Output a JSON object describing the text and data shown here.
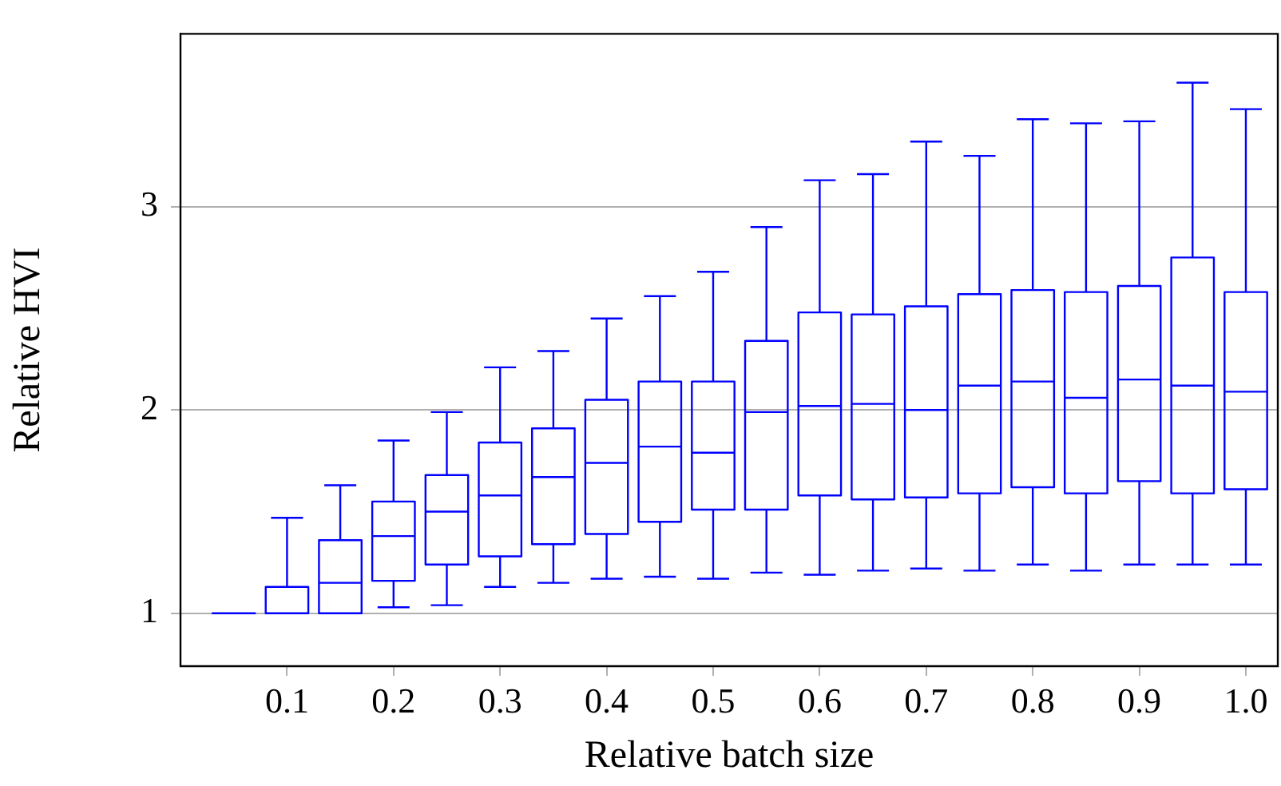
{
  "chart_data": {
    "type": "box",
    "xlabel": "Relative batch size",
    "ylabel": "Relative HVI",
    "x": [
      0.05,
      0.1,
      0.15,
      0.2,
      0.25,
      0.3,
      0.35,
      0.4,
      0.45,
      0.5,
      0.55,
      0.6,
      0.65,
      0.7,
      0.75,
      0.8,
      0.85,
      0.9,
      0.95,
      1.0
    ],
    "xlim": [
      0,
      1.03
    ],
    "xticks": [
      {
        "value": 0.1,
        "label": "0.1"
      },
      {
        "value": 0.2,
        "label": "0.2"
      },
      {
        "value": 0.3,
        "label": "0.3"
      },
      {
        "value": 0.4,
        "label": "0.4"
      },
      {
        "value": 0.5,
        "label": "0.5"
      },
      {
        "value": 0.6,
        "label": "0.6"
      },
      {
        "value": 0.7,
        "label": "0.7"
      },
      {
        "value": 0.8,
        "label": "0.8"
      },
      {
        "value": 0.9,
        "label": "0.9"
      },
      {
        "value": 1.0,
        "label": "1.0"
      }
    ],
    "ylim": [
      0.74,
      3.85
    ],
    "yticks": [
      1,
      2,
      3
    ],
    "grid": "y",
    "color": "#0000ff",
    "boxes": [
      {
        "low": 1,
        "q1": 1,
        "median": 1,
        "q3": 1,
        "high": 1
      },
      {
        "low": 1,
        "q1": 1,
        "median": 1,
        "q3": 1.13,
        "high": 1.47
      },
      {
        "low": 1,
        "q1": 1,
        "median": 1.15,
        "q3": 1.36,
        "high": 1.63
      },
      {
        "low": 1.03,
        "q1": 1.16,
        "median": 1.38,
        "q3": 1.55,
        "high": 1.85
      },
      {
        "low": 1.04,
        "q1": 1.24,
        "median": 1.5,
        "q3": 1.68,
        "high": 1.99
      },
      {
        "low": 1.13,
        "q1": 1.28,
        "median": 1.58,
        "q3": 1.84,
        "high": 2.21
      },
      {
        "low": 1.15,
        "q1": 1.34,
        "median": 1.67,
        "q3": 1.91,
        "high": 2.29
      },
      {
        "low": 1.17,
        "q1": 1.39,
        "median": 1.74,
        "q3": 2.05,
        "high": 2.45
      },
      {
        "low": 1.18,
        "q1": 1.45,
        "median": 1.82,
        "q3": 2.14,
        "high": 2.56
      },
      {
        "low": 1.17,
        "q1": 1.51,
        "median": 1.79,
        "q3": 2.14,
        "high": 2.68
      },
      {
        "low": 1.2,
        "q1": 1.51,
        "median": 1.99,
        "q3": 2.34,
        "high": 2.9
      },
      {
        "low": 1.19,
        "q1": 1.58,
        "median": 2.02,
        "q3": 2.48,
        "high": 3.13
      },
      {
        "low": 1.21,
        "q1": 1.56,
        "median": 2.03,
        "q3": 2.47,
        "high": 3.16
      },
      {
        "low": 1.22,
        "q1": 1.57,
        "median": 2,
        "q3": 2.51,
        "high": 3.32
      },
      {
        "low": 1.21,
        "q1": 1.59,
        "median": 2.12,
        "q3": 2.57,
        "high": 3.25
      },
      {
        "low": 1.24,
        "q1": 1.62,
        "median": 2.14,
        "q3": 2.59,
        "high": 3.43
      },
      {
        "low": 1.21,
        "q1": 1.59,
        "median": 2.06,
        "q3": 2.58,
        "high": 3.41
      },
      {
        "low": 1.24,
        "q1": 1.65,
        "median": 2.15,
        "q3": 2.61,
        "high": 3.42
      },
      {
        "low": 1.24,
        "q1": 1.59,
        "median": 2.12,
        "q3": 2.75,
        "high": 3.61
      },
      {
        "low": 1.24,
        "q1": 1.61,
        "median": 2.09,
        "q3": 2.58,
        "high": 3.48
      }
    ]
  }
}
